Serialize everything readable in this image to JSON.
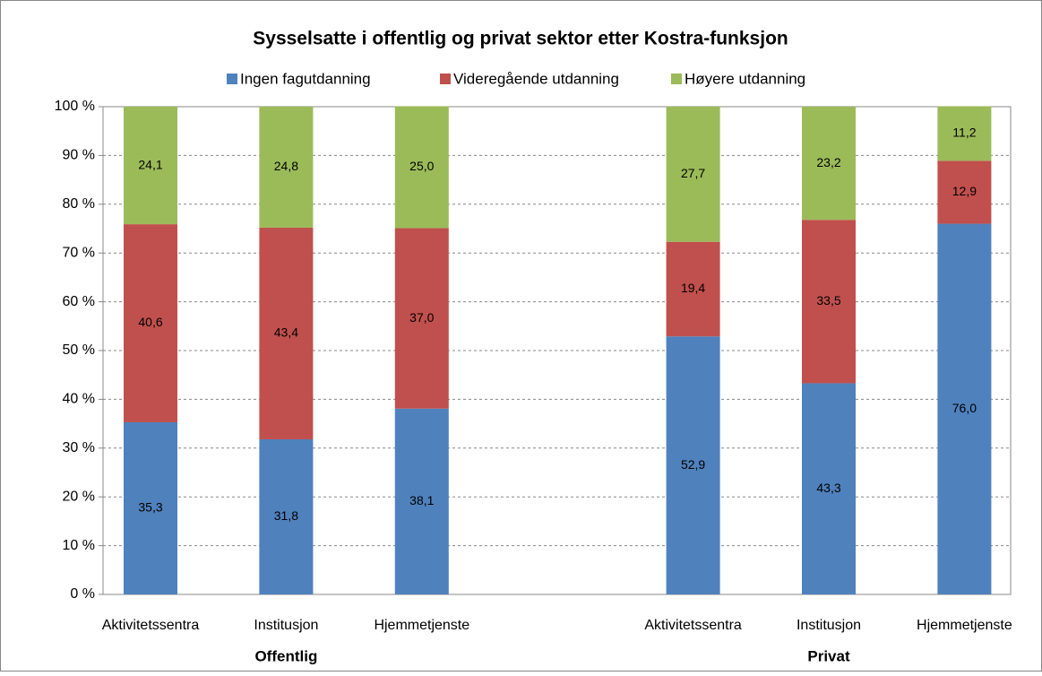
{
  "chart_data": {
    "type": "stacked_bar",
    "title": "Sysselsatte i offentlig og privat sektor etter Kostra-funksjon",
    "categories": [
      "Aktivitetssentra",
      "Institusjon",
      "Hjemmetjenste",
      null,
      "Aktivitetssentra",
      "Institusjon",
      "Hjemmetjenste"
    ],
    "group_labels": [
      "Offentlig",
      "Privat"
    ],
    "series": [
      {
        "name": "Ingen fagutdanning",
        "color": "#4f81bd",
        "values": [
          35.3,
          31.8,
          38.1,
          null,
          52.9,
          43.3,
          76.0
        ],
        "value_labels": [
          "35,3",
          "31,8",
          "38,1",
          null,
          "52,9",
          "43,3",
          "76,0"
        ]
      },
      {
        "name": "Videregående utdanning",
        "color": "#c0504d",
        "values": [
          40.6,
          43.4,
          37.0,
          null,
          19.4,
          33.5,
          12.9
        ],
        "value_labels": [
          "40,6",
          "43,4",
          "37,0",
          null,
          "19,4",
          "33,5",
          "12,9"
        ]
      },
      {
        "name": "Høyere utdanning",
        "color": "#9bbb59",
        "values": [
          24.1,
          24.8,
          25.0,
          null,
          27.7,
          23.2,
          11.2
        ],
        "value_labels": [
          "24,1",
          "24,8",
          "25,0",
          null,
          "27,7",
          "23,2",
          "11,2"
        ]
      }
    ],
    "ylim": [
      0,
      100
    ],
    "yticks": [
      {
        "value": 0,
        "label": "0 %"
      },
      {
        "value": 10,
        "label": "10 %"
      },
      {
        "value": 20,
        "label": "20 %"
      },
      {
        "value": 30,
        "label": "30 %"
      },
      {
        "value": 40,
        "label": "40 %"
      },
      {
        "value": 50,
        "label": "50 %"
      },
      {
        "value": 60,
        "label": "60 %"
      },
      {
        "value": 70,
        "label": "70 %"
      },
      {
        "value": 80,
        "label": "80 %"
      },
      {
        "value": 90,
        "label": "90 %"
      },
      {
        "value": 100,
        "label": "100 %"
      }
    ],
    "grid": true
  }
}
